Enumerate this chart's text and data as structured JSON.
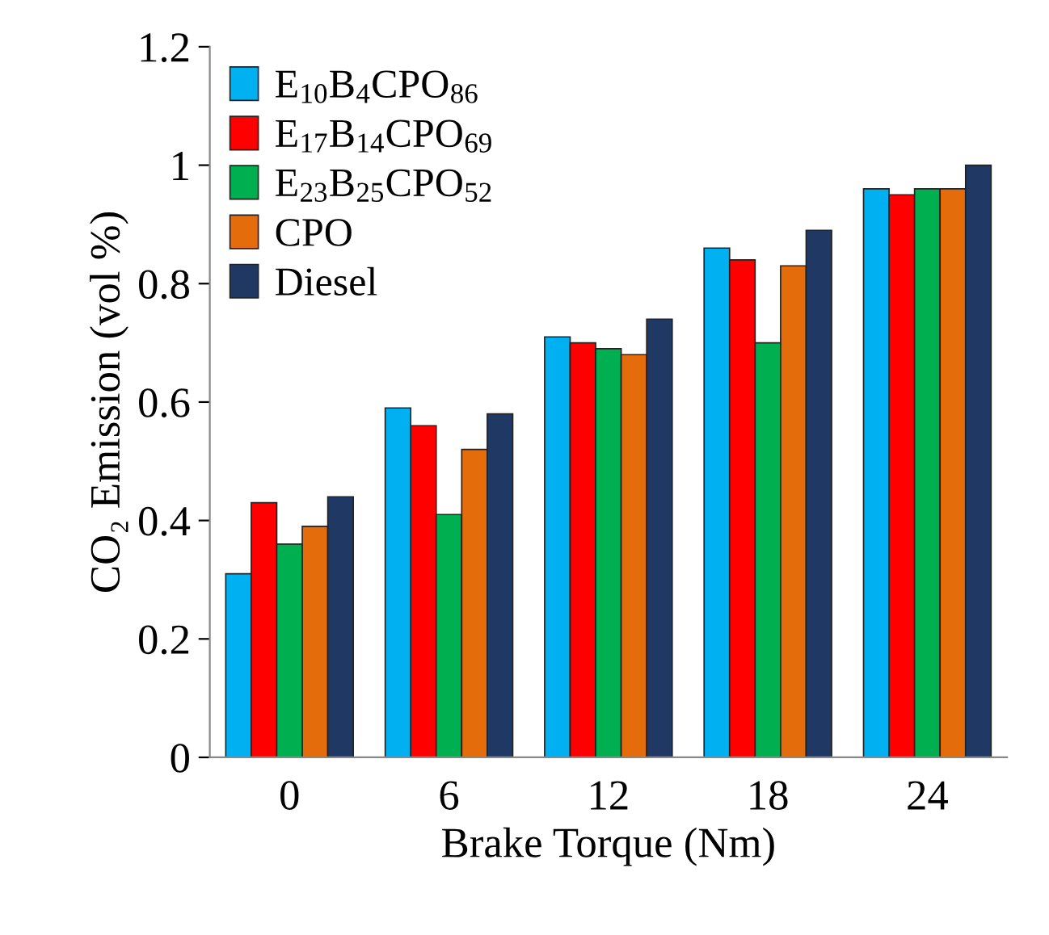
{
  "chart_data": {
    "type": "bar",
    "xlabel": "Brake Torque (Nm)",
    "ylabel": "CO₂ Emission (vol %)",
    "categories": [
      "0",
      "6",
      "12",
      "18",
      "24"
    ],
    "series": [
      {
        "name": "E$_{10}$B$_{4}$CPO$_{86}$",
        "color": "#00b0f0",
        "values": [
          0.31,
          0.59,
          0.71,
          0.86,
          0.96
        ]
      },
      {
        "name": "E$_{17}$B$_{14}$CPO$_{69}$",
        "color": "#ff0000",
        "values": [
          0.43,
          0.56,
          0.7,
          0.84,
          0.95
        ]
      },
      {
        "name": "E$_{23}$B$_{25}$CPO$_{52}$",
        "color": "#00b050",
        "values": [
          0.36,
          0.41,
          0.69,
          0.7,
          0.96
        ]
      },
      {
        "name": "CPO",
        "color": "#e46c0a",
        "values": [
          0.39,
          0.52,
          0.68,
          0.83,
          0.96
        ]
      },
      {
        "name": "Diesel",
        "color": "#1f3864",
        "values": [
          0.44,
          0.58,
          0.74,
          0.89,
          1.0
        ]
      }
    ],
    "ylim": [
      0,
      1.2
    ],
    "yticks": [
      0,
      0.2,
      0.4,
      0.6,
      0.8,
      1,
      1.2
    ],
    "grid": false,
    "legend": "top left"
  }
}
